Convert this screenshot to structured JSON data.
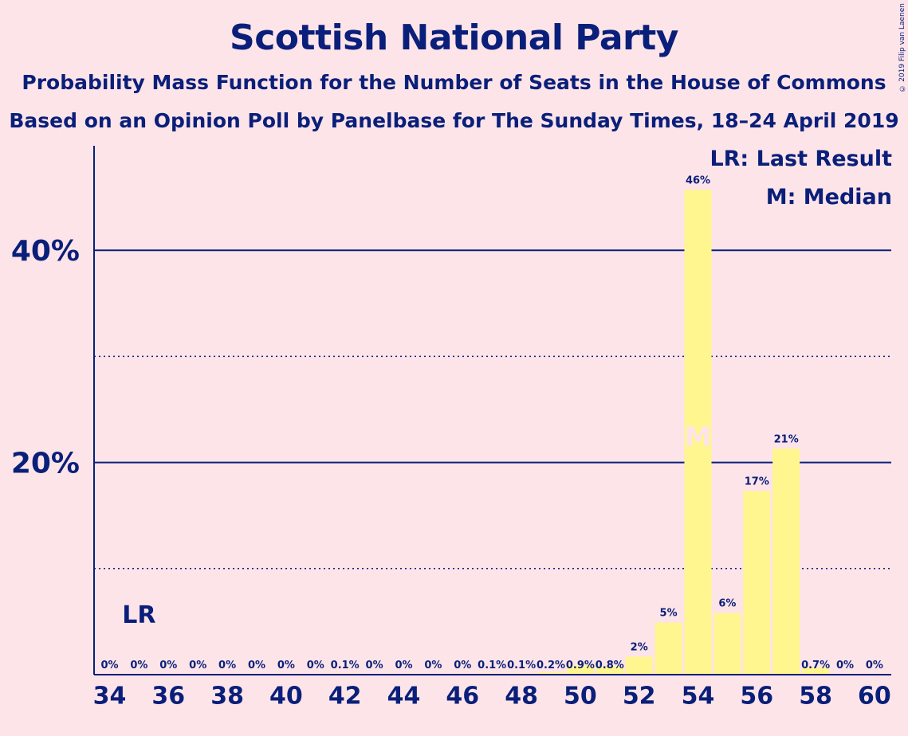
{
  "title": "Scottish National Party",
  "subtitle_1": "Probability Mass Function for the Number of Seats in the House of Commons",
  "subtitle_2": "Based on an Opinion Poll by Panelbase for The Sunday Times, 18–24 April 2019",
  "copyright": "© 2019 Filip van Laenen",
  "legend": {
    "last_result": "LR: Last Result",
    "median": "M: Median"
  },
  "colors": {
    "background": "#fde4e8",
    "bar": "#fff68f",
    "text": "#0a1f7a"
  },
  "chart_data": {
    "type": "bar",
    "x": [
      34,
      35,
      36,
      37,
      38,
      39,
      40,
      41,
      42,
      43,
      44,
      45,
      46,
      47,
      48,
      49,
      50,
      51,
      52,
      53,
      54,
      55,
      56,
      57,
      58,
      59,
      60
    ],
    "values": [
      0,
      0,
      0,
      0,
      0,
      0,
      0,
      0,
      0.1,
      0,
      0,
      0,
      0,
      0.1,
      0.1,
      0.2,
      0.9,
      0.8,
      1.7,
      4.9,
      45.7,
      5.8,
      17.3,
      21.3,
      0.7,
      0,
      0
    ],
    "data_labels": [
      "0%",
      "0%",
      "0%",
      "0%",
      "0%",
      "0%",
      "0%",
      "0%",
      "0.1%",
      "0%",
      "0%",
      "0%",
      "0%",
      "0.1%",
      "0.1%",
      "0.2%",
      "0.9%",
      "0.8%",
      "2%",
      "5%",
      "46%",
      "6%",
      "17%",
      "21%",
      "0.7%",
      "0%",
      "0%"
    ],
    "x_tick_labels": [
      "34",
      "36",
      "38",
      "40",
      "42",
      "44",
      "46",
      "48",
      "50",
      "52",
      "54",
      "56",
      "58",
      "60"
    ],
    "y_tick_labels": [
      "20%",
      "40%"
    ],
    "y_ticks": [
      20,
      40
    ],
    "y_dotted_gridlines": [
      10,
      30
    ],
    "ylim": [
      0,
      50
    ],
    "last_result": {
      "seat": 35,
      "label": "LR"
    },
    "median": {
      "seat": 54,
      "label": "M"
    }
  }
}
